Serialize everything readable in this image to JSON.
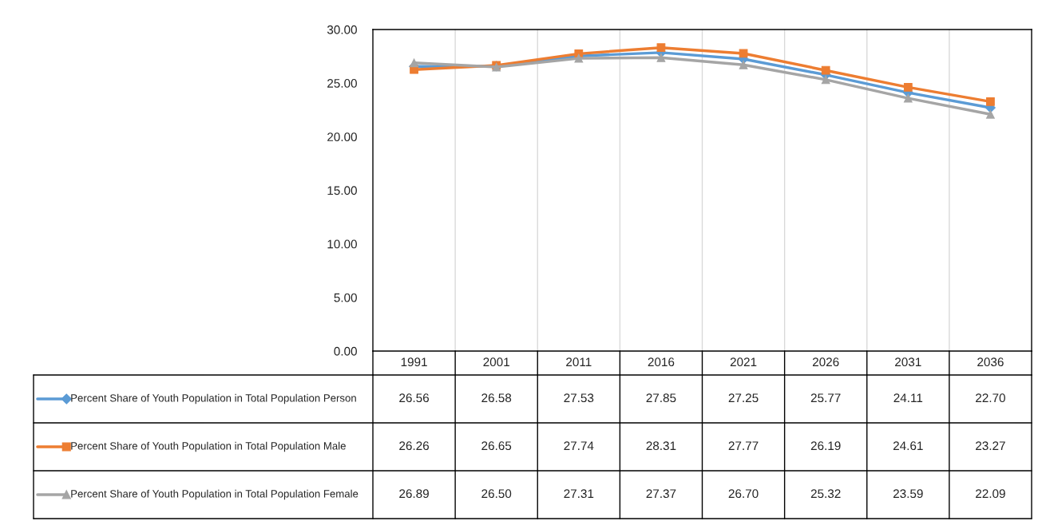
{
  "chart_data": {
    "type": "line",
    "categories": [
      "1991",
      "2001",
      "2011",
      "2016",
      "2021",
      "2026",
      "2031",
      "2036"
    ],
    "series": [
      {
        "name": "Percent Share of Youth Population in Total Population Person",
        "color": "#5b9bd5",
        "marker": "diamond",
        "values": [
          26.56,
          26.58,
          27.53,
          27.85,
          27.25,
          25.77,
          24.11,
          22.7
        ],
        "value_labels": [
          "26.56",
          "26.58",
          "27.53",
          "27.85",
          "27.25",
          "25.77",
          "24.11",
          "22.70"
        ]
      },
      {
        "name": "Percent Share of Youth Population in Total Population Male",
        "color": "#ed7d31",
        "marker": "square",
        "values": [
          26.26,
          26.65,
          27.74,
          28.31,
          27.77,
          26.19,
          24.61,
          23.27
        ],
        "value_labels": [
          "26.26",
          "26.65",
          "27.74",
          "28.31",
          "27.77",
          "26.19",
          "24.61",
          "23.27"
        ]
      },
      {
        "name": "Percent Share of Youth Population in Total Population Female",
        "color": "#a5a5a5",
        "marker": "triangle",
        "values": [
          26.89,
          26.5,
          27.31,
          27.37,
          26.7,
          25.32,
          23.59,
          22.09
        ],
        "value_labels": [
          "26.89",
          "26.50",
          "27.31",
          "27.37",
          "26.70",
          "25.32",
          "23.59",
          "22.09"
        ]
      }
    ],
    "ylim": [
      0,
      30
    ],
    "yticks": [
      {
        "value": 0,
        "label": "0.00"
      },
      {
        "value": 5,
        "label": "5.00"
      },
      {
        "value": 10,
        "label": "10.00"
      },
      {
        "value": 15,
        "label": "15.00"
      },
      {
        "value": 20,
        "label": "20.00"
      },
      {
        "value": 25,
        "label": "25.00"
      },
      {
        "value": 30,
        "label": "30.00"
      }
    ],
    "grid": "x",
    "legend": "bottom",
    "line_style": "solid"
  }
}
